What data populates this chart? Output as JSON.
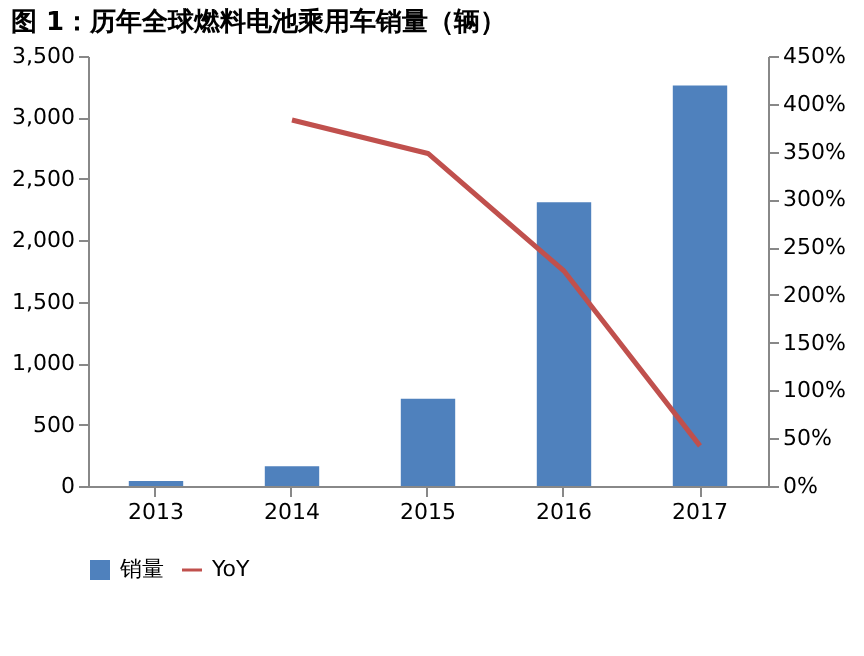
{
  "chart_data": {
    "type": "bar",
    "title": "图 1：历年全球燃料电池乘用车销量（辆）",
    "categories": [
      "2013",
      "2014",
      "2015",
      "2016",
      "2017"
    ],
    "series": [
      {
        "name": "销量",
        "color": "#4f81bd",
        "values": [
          40,
          160,
          710,
          2310,
          3260
        ]
      },
      {
        "name": "YoY",
        "type": "line",
        "axis": "y2",
        "color": "#c0504d",
        "values": [
          null,
          383,
          348,
          225,
          42
        ]
      }
    ],
    "ylim": [
      0,
      3500
    ],
    "yticks": [
      0,
      500,
      {
        "value": 1000,
        "label": "1,000"
      },
      {
        "value": 1500,
        "label": "1,500"
      },
      {
        "value": 2000,
        "label": "2,000"
      },
      {
        "value": 2500,
        "label": "2,500"
      },
      {
        "value": 3000,
        "label": "3,000"
      },
      {
        "value": 3500,
        "label": "3,500"
      }
    ],
    "y2lim": [
      0,
      450
    ],
    "y2ticks": [
      {
        "value": 0,
        "label": "0%"
      },
      {
        "value": 50,
        "label": "50%"
      },
      {
        "value": 100,
        "label": "100%"
      },
      {
        "value": 150,
        "label": "150%"
      },
      {
        "value": 200,
        "label": "200%"
      },
      {
        "value": 250,
        "label": "250%"
      },
      {
        "value": 300,
        "label": "300%"
      },
      {
        "value": 350,
        "label": "350%"
      },
      {
        "value": 400,
        "label": "400%"
      },
      {
        "value": 450,
        "label": "450%"
      }
    ],
    "legend": "bottom",
    "grid": false
  }
}
